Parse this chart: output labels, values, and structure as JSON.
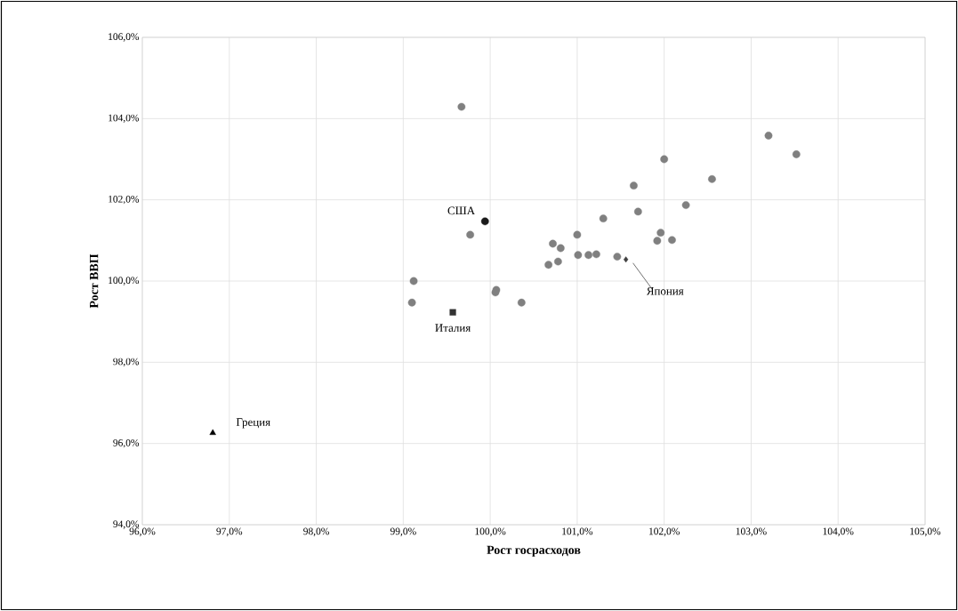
{
  "chart_data": {
    "type": "scatter",
    "xlabel": "Рост госрасходов",
    "ylabel": "Рост ВВП",
    "grid": true,
    "xlim": [
      96,
      105
    ],
    "ylim": [
      94,
      106
    ],
    "xticks": [
      {
        "value": 96,
        "label": "96,0%"
      },
      {
        "value": 97,
        "label": "97,0%"
      },
      {
        "value": 98,
        "label": "98,0%"
      },
      {
        "value": 99,
        "label": "99,0%"
      },
      {
        "value": 100,
        "label": "100,0%"
      },
      {
        "value": 101,
        "label": "101,0%"
      },
      {
        "value": 102,
        "label": "102,0%"
      },
      {
        "value": 103,
        "label": "103,0%"
      },
      {
        "value": 104,
        "label": "104,0%"
      },
      {
        "value": 105,
        "label": "105,0%"
      }
    ],
    "yticks": [
      {
        "value": 94,
        "label": "94,0%"
      },
      {
        "value": 96,
        "label": "96,0%"
      },
      {
        "value": 98,
        "label": "98,0%"
      },
      {
        "value": 100,
        "label": "100,0%"
      },
      {
        "value": 102,
        "label": "102,0%"
      },
      {
        "value": 104,
        "label": "104,0%"
      },
      {
        "value": 106,
        "label": "106,0%"
      }
    ],
    "series": [
      {
        "color": "#808080",
        "marker": "circle",
        "x": [
          99.67,
          102.0,
          101.65,
          101.7,
          101.3,
          99.77,
          101.0,
          101.96,
          101.92,
          102.09,
          100.72,
          100.81,
          101.01,
          101.13,
          101.22,
          101.46,
          100.67,
          100.78,
          99.12,
          99.1,
          100.07,
          100.06,
          100.36,
          103.2,
          103.52,
          102.55,
          102.25
        ],
        "values": [
          104.29,
          103.0,
          102.35,
          101.71,
          101.54,
          101.14,
          101.14,
          101.19,
          100.99,
          101.01,
          100.92,
          100.81,
          100.64,
          100.64,
          100.66,
          100.6,
          100.4,
          100.48,
          100.0,
          99.47,
          99.78,
          99.72,
          99.47,
          103.58,
          103.12,
          102.51,
          101.87
        ]
      },
      {
        "name": "США",
        "color": "#1a1a1a",
        "marker": "circle",
        "x": [
          99.94
        ],
        "values": [
          101.47
        ]
      },
      {
        "name": "Италия",
        "color": "#333333",
        "marker": "square",
        "x": [
          99.57
        ],
        "values": [
          99.23
        ]
      },
      {
        "name": "Япония",
        "color": "#404040",
        "marker": "diamond",
        "x": [
          101.56
        ],
        "values": [
          100.53
        ]
      },
      {
        "name": "Греция",
        "color": "#000000",
        "marker": "triangle",
        "x": [
          96.81
        ],
        "values": [
          96.26
        ]
      }
    ]
  }
}
